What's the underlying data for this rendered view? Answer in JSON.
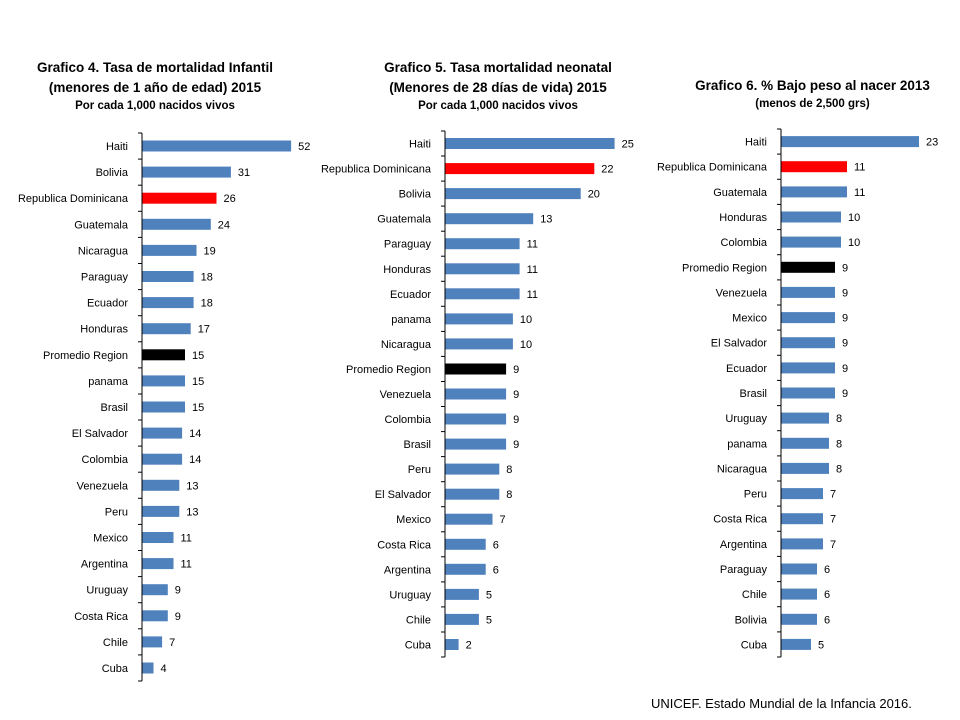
{
  "colors": {
    "default": "#4f81bd",
    "highlight": "#ff0000",
    "average": "#000000",
    "axis": "#000000"
  },
  "source": "UNICEF. Estado Mundial de la Infancia 2016.",
  "chart_data": [
    {
      "type": "bar",
      "orientation": "horizontal",
      "title": "Grafico 4. Tasa de mortalidad Infantil",
      "title2": "(menores de 1 año de edad) 2015",
      "subtitle": "Por cada 1,000  nacidos vivos",
      "categories": [
        "Haiti",
        "Bolivia",
        "Republica Dominicana",
        "Guatemala",
        "Nicaragua",
        "Paraguay",
        "Ecuador",
        "Honduras",
        "Promedio Region",
        "panama",
        "Brasil",
        "El Salvador",
        "Colombia",
        "Venezuela",
        "Peru",
        "Mexico",
        "Argentina",
        "Uruguay",
        "Costa Rica",
        "Chile",
        "Cuba"
      ],
      "values": [
        52,
        31,
        26,
        24,
        19,
        18,
        18,
        17,
        15,
        15,
        15,
        14,
        14,
        13,
        13,
        11,
        11,
        9,
        9,
        7,
        4
      ],
      "highlight": "Republica Dominicana",
      "average": "Promedio Region",
      "xlim": [
        0,
        60
      ]
    },
    {
      "type": "bar",
      "orientation": "horizontal",
      "title": "Grafico 5. Tasa mortalidad neonatal",
      "title2": "(Menores de 28 días de vida) 2015",
      "subtitle": "Por cada 1,000 nacidos vivos",
      "categories": [
        "Haiti",
        "Republica Dominicana",
        "Bolivia",
        "Guatemala",
        "Paraguay",
        "Honduras",
        "Ecuador",
        "panama",
        "Nicaragua",
        "Promedio Region",
        "Venezuela",
        "Colombia",
        "Brasil",
        "Peru",
        "El Salvador",
        "Mexico",
        "Costa Rica",
        "Argentina",
        "Uruguay",
        "Chile",
        "Cuba"
      ],
      "values": [
        25,
        22,
        20,
        13,
        11,
        11,
        11,
        10,
        10,
        9,
        9,
        9,
        9,
        8,
        8,
        7,
        6,
        6,
        5,
        5,
        2
      ],
      "highlight": "Republica Dominicana",
      "average": "Promedio Region",
      "xlim": [
        0,
        28
      ]
    },
    {
      "type": "bar",
      "orientation": "horizontal",
      "title": "Grafico 6. % Bajo peso al nacer 2013",
      "title2": "",
      "subtitle": "(menos de 2,500 grs)",
      "categories": [
        "Haiti",
        "Republica Dominicana",
        "Guatemala",
        "Honduras",
        "Colombia",
        "Promedio Region",
        "Venezuela",
        "Mexico",
        "El Salvador",
        "Ecuador",
        "Brasil",
        "Uruguay",
        "panama",
        "Nicaragua",
        "Peru",
        "Costa Rica",
        "Argentina",
        "Paraguay",
        "Chile",
        "Bolivia",
        "Cuba"
      ],
      "values": [
        23,
        11,
        11,
        10,
        10,
        9,
        9,
        9,
        9,
        9,
        9,
        8,
        8,
        8,
        7,
        7,
        7,
        6,
        6,
        6,
        5
      ],
      "highlight": "Republica Dominicana",
      "average": "Promedio Region",
      "xlim": [
        0,
        27
      ]
    }
  ]
}
